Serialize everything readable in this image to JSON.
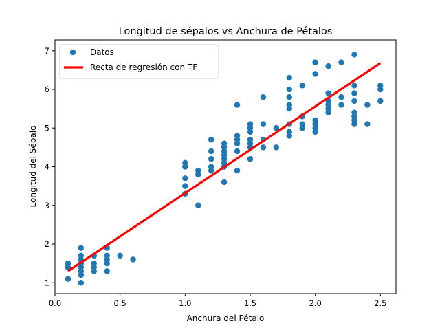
{
  "chart_data": {
    "type": "scatter",
    "title": "Longitud de sépalos vs Anchura de Pétalos",
    "xlabel": "Anchura del Pétalo",
    "ylabel": "Longitud del Sépalo",
    "xlim": [
      0.0,
      2.62
    ],
    "ylim": [
      0.72,
      7.28
    ],
    "xticks": [
      0.0,
      0.5,
      1.0,
      1.5,
      2.0,
      2.5
    ],
    "xtick_labels": [
      "0.0",
      "0.5",
      "1.0",
      "1.5",
      "2.0",
      "2.5"
    ],
    "yticks": [
      1,
      2,
      3,
      4,
      5,
      6,
      7
    ],
    "ytick_labels": [
      "1",
      "2",
      "3",
      "4",
      "5",
      "6",
      "7"
    ],
    "grid": false,
    "legend_position": "top-left",
    "series": [
      {
        "name": "Datos",
        "kind": "scatter",
        "color": "#1f77b4",
        "points": [
          [
            0.1,
            1.1
          ],
          [
            0.1,
            1.4
          ],
          [
            0.1,
            1.5
          ],
          [
            0.2,
            1.0
          ],
          [
            0.2,
            1.2
          ],
          [
            0.2,
            1.3
          ],
          [
            0.2,
            1.4
          ],
          [
            0.2,
            1.5
          ],
          [
            0.2,
            1.6
          ],
          [
            0.2,
            1.7
          ],
          [
            0.2,
            1.9
          ],
          [
            0.3,
            1.3
          ],
          [
            0.3,
            1.4
          ],
          [
            0.3,
            1.5
          ],
          [
            0.3,
            1.7
          ],
          [
            0.4,
            1.3
          ],
          [
            0.4,
            1.5
          ],
          [
            0.4,
            1.6
          ],
          [
            0.4,
            1.7
          ],
          [
            0.4,
            1.9
          ],
          [
            0.5,
            1.7
          ],
          [
            0.6,
            1.6
          ],
          [
            1.0,
            3.3
          ],
          [
            1.0,
            3.5
          ],
          [
            1.0,
            3.7
          ],
          [
            1.0,
            4.0
          ],
          [
            1.0,
            4.1
          ],
          [
            1.1,
            3.0
          ],
          [
            1.1,
            3.8
          ],
          [
            1.1,
            3.9
          ],
          [
            1.2,
            3.9
          ],
          [
            1.2,
            4.0
          ],
          [
            1.2,
            4.2
          ],
          [
            1.2,
            4.4
          ],
          [
            1.2,
            4.7
          ],
          [
            1.3,
            3.6
          ],
          [
            1.3,
            4.0
          ],
          [
            1.3,
            4.1
          ],
          [
            1.3,
            4.2
          ],
          [
            1.3,
            4.3
          ],
          [
            1.3,
            4.4
          ],
          [
            1.3,
            4.5
          ],
          [
            1.3,
            4.6
          ],
          [
            1.4,
            3.9
          ],
          [
            1.4,
            4.4
          ],
          [
            1.4,
            4.6
          ],
          [
            1.4,
            4.7
          ],
          [
            1.4,
            4.8
          ],
          [
            1.4,
            5.6
          ],
          [
            1.5,
            4.2
          ],
          [
            1.5,
            4.5
          ],
          [
            1.5,
            4.6
          ],
          [
            1.5,
            4.7
          ],
          [
            1.5,
            4.9
          ],
          [
            1.5,
            5.0
          ],
          [
            1.5,
            5.1
          ],
          [
            1.6,
            4.5
          ],
          [
            1.6,
            4.7
          ],
          [
            1.6,
            5.1
          ],
          [
            1.6,
            5.8
          ],
          [
            1.7,
            4.5
          ],
          [
            1.7,
            5.0
          ],
          [
            1.8,
            4.8
          ],
          [
            1.8,
            4.9
          ],
          [
            1.8,
            5.1
          ],
          [
            1.8,
            5.5
          ],
          [
            1.8,
            5.6
          ],
          [
            1.8,
            5.8
          ],
          [
            1.8,
            6.0
          ],
          [
            1.8,
            6.3
          ],
          [
            1.9,
            5.0
          ],
          [
            1.9,
            5.1
          ],
          [
            1.9,
            5.3
          ],
          [
            1.9,
            6.1
          ],
          [
            2.0,
            4.9
          ],
          [
            2.0,
            5.0
          ],
          [
            2.0,
            5.1
          ],
          [
            2.0,
            5.2
          ],
          [
            2.0,
            6.4
          ],
          [
            2.0,
            6.7
          ],
          [
            2.1,
            5.4
          ],
          [
            2.1,
            5.5
          ],
          [
            2.1,
            5.6
          ],
          [
            2.1,
            5.7
          ],
          [
            2.1,
            5.9
          ],
          [
            2.1,
            6.6
          ],
          [
            2.2,
            5.6
          ],
          [
            2.2,
            5.8
          ],
          [
            2.2,
            6.7
          ],
          [
            2.3,
            5.1
          ],
          [
            2.3,
            5.2
          ],
          [
            2.3,
            5.3
          ],
          [
            2.3,
            5.4
          ],
          [
            2.3,
            5.7
          ],
          [
            2.3,
            5.9
          ],
          [
            2.3,
            6.1
          ],
          [
            2.3,
            6.9
          ],
          [
            2.4,
            5.1
          ],
          [
            2.4,
            5.6
          ],
          [
            2.5,
            5.7
          ],
          [
            2.5,
            6.0
          ],
          [
            2.5,
            6.1
          ]
        ]
      },
      {
        "name": "Recta de regresión con TF",
        "kind": "line",
        "color": "#ff0000",
        "x": [
          0.1,
          2.5
        ],
        "y": [
          1.3,
          6.68
        ]
      }
    ]
  }
}
